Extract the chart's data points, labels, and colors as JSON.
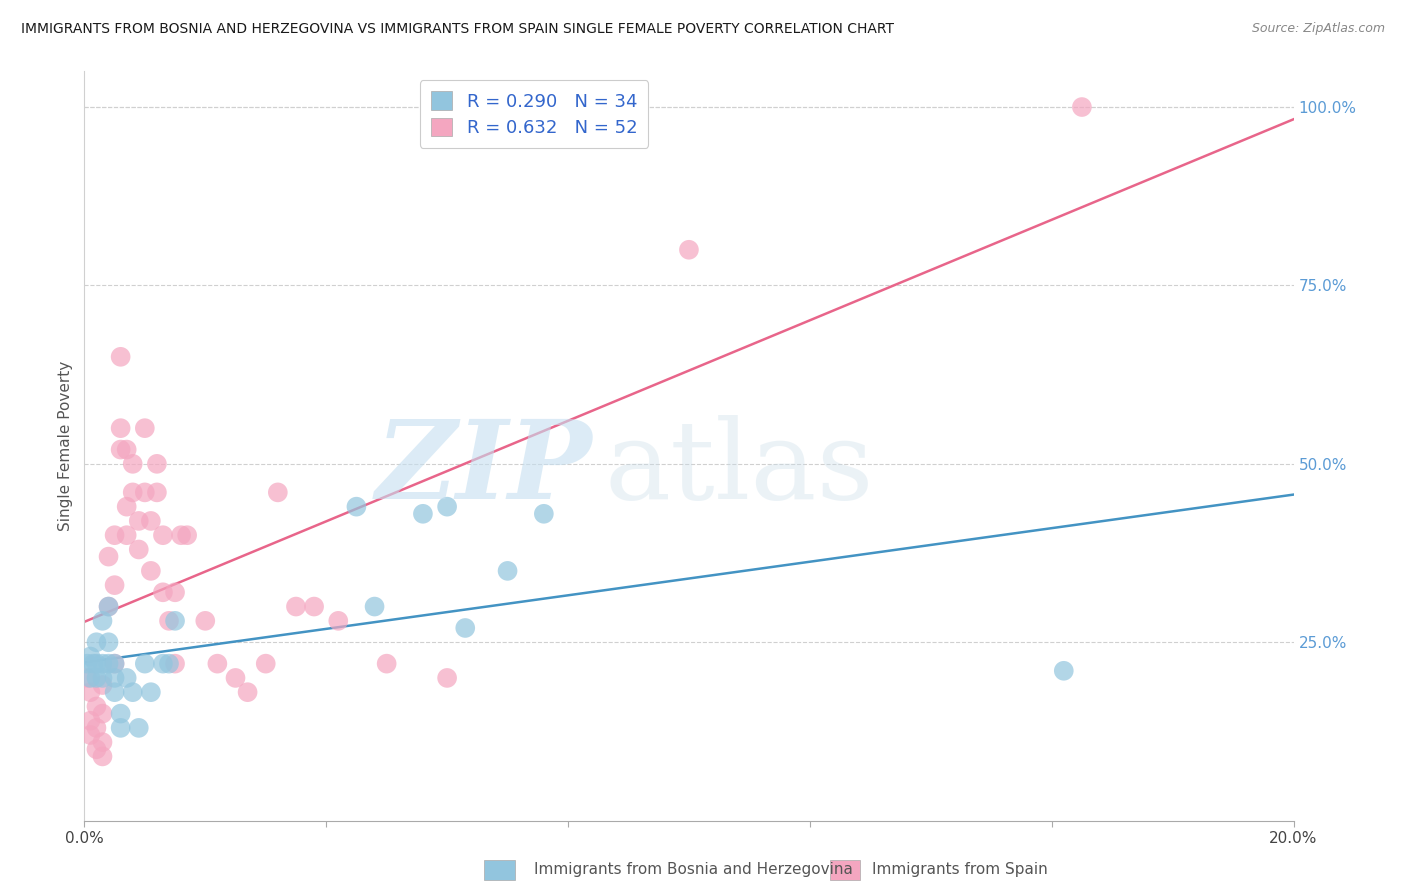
{
  "title": "IMMIGRANTS FROM BOSNIA AND HERZEGOVINA VS IMMIGRANTS FROM SPAIN SINGLE FEMALE POVERTY CORRELATION CHART",
  "source": "Source: ZipAtlas.com",
  "ylabel": "Single Female Poverty",
  "xlim": [
    0.0,
    0.2
  ],
  "ylim": [
    0.0,
    1.05
  ],
  "bosnia_R": 0.29,
  "bosnia_N": 34,
  "spain_R": 0.632,
  "spain_N": 52,
  "bosnia_color": "#92c5de",
  "spain_color": "#f4a6c0",
  "bosnia_line_color": "#4393c3",
  "spain_line_color": "#e8658a",
  "legend_label_bosnia": "Immigrants from Bosnia and Herzegovina",
  "legend_label_spain": "Immigrants from Spain",
  "background_color": "#ffffff",
  "bosnia_x": [
    0.0005,
    0.001,
    0.001,
    0.0015,
    0.002,
    0.002,
    0.002,
    0.003,
    0.003,
    0.003,
    0.004,
    0.004,
    0.004,
    0.005,
    0.005,
    0.005,
    0.006,
    0.006,
    0.007,
    0.008,
    0.009,
    0.01,
    0.011,
    0.013,
    0.014,
    0.015,
    0.045,
    0.048,
    0.056,
    0.06,
    0.063,
    0.07,
    0.076,
    0.162
  ],
  "bosnia_y": [
    0.22,
    0.23,
    0.2,
    0.22,
    0.25,
    0.22,
    0.2,
    0.22,
    0.28,
    0.2,
    0.3,
    0.25,
    0.22,
    0.18,
    0.22,
    0.2,
    0.15,
    0.13,
    0.2,
    0.18,
    0.13,
    0.22,
    0.18,
    0.22,
    0.22,
    0.28,
    0.44,
    0.3,
    0.43,
    0.44,
    0.27,
    0.35,
    0.43,
    0.21
  ],
  "spain_x": [
    0.0005,
    0.001,
    0.001,
    0.001,
    0.002,
    0.002,
    0.002,
    0.003,
    0.003,
    0.003,
    0.003,
    0.004,
    0.004,
    0.005,
    0.005,
    0.005,
    0.006,
    0.006,
    0.006,
    0.007,
    0.007,
    0.007,
    0.008,
    0.008,
    0.009,
    0.009,
    0.01,
    0.01,
    0.011,
    0.011,
    0.012,
    0.012,
    0.013,
    0.013,
    0.014,
    0.015,
    0.015,
    0.016,
    0.017,
    0.02,
    0.022,
    0.025,
    0.027,
    0.03,
    0.032,
    0.035,
    0.038,
    0.042,
    0.05,
    0.06,
    0.1,
    0.165
  ],
  "spain_y": [
    0.2,
    0.18,
    0.14,
    0.12,
    0.16,
    0.13,
    0.1,
    0.19,
    0.15,
    0.11,
    0.09,
    0.37,
    0.3,
    0.4,
    0.33,
    0.22,
    0.65,
    0.55,
    0.52,
    0.52,
    0.44,
    0.4,
    0.5,
    0.46,
    0.42,
    0.38,
    0.55,
    0.46,
    0.42,
    0.35,
    0.5,
    0.46,
    0.4,
    0.32,
    0.28,
    0.32,
    0.22,
    0.4,
    0.4,
    0.28,
    0.22,
    0.2,
    0.18,
    0.22,
    0.46,
    0.3,
    0.3,
    0.28,
    0.22,
    0.2,
    0.8,
    1.0
  ]
}
